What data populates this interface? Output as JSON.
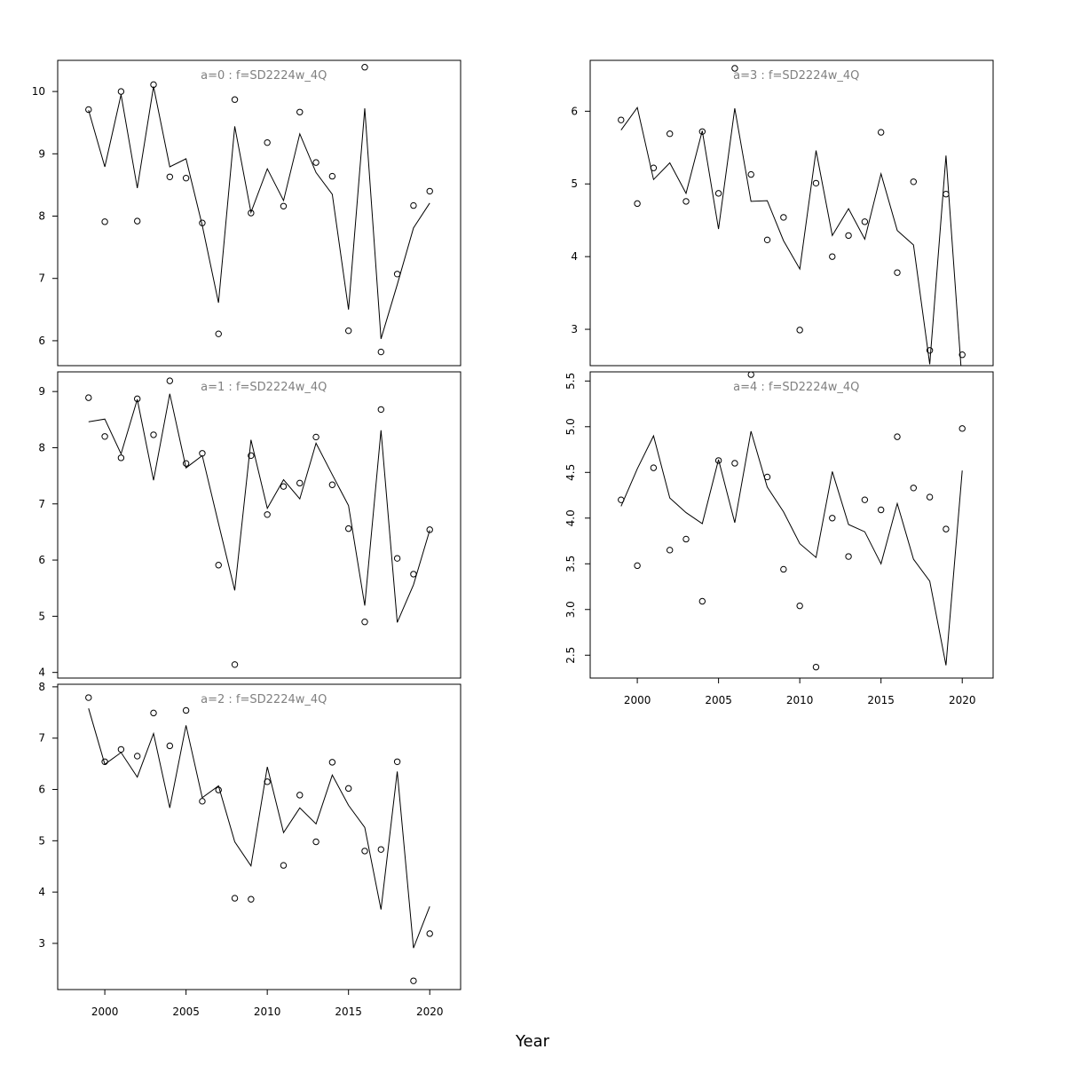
{
  "figure": {
    "xlabel": "Year"
  },
  "colors": {
    "title": "#808080",
    "line": "#000000",
    "points": "#000000",
    "frame": "#000000"
  },
  "chart_data": [
    {
      "type": "line",
      "title": "a=0  :  f=SD2224w_4Q",
      "xlim": [
        1997.1,
        2021.9
      ],
      "ylim": [
        5.6,
        10.5
      ],
      "yticks": [
        6,
        7,
        8,
        9,
        10
      ],
      "xticks": [],
      "x": [
        1999,
        2000,
        2001,
        2002,
        2003,
        2004,
        2005,
        2006,
        2007,
        2008,
        2009,
        2010,
        2011,
        2012,
        2013,
        2014,
        2015,
        2016,
        2017,
        2018,
        2019,
        2020
      ],
      "series": [
        {
          "kind": "points",
          "values": [
            9.71,
            7.91,
            10.0,
            7.92,
            10.11,
            8.63,
            8.61,
            7.89,
            6.11,
            9.87,
            8.05,
            9.18,
            8.16,
            9.67,
            8.86,
            8.64,
            6.16,
            10.39,
            5.82,
            7.07,
            8.17,
            8.4
          ]
        },
        {
          "kind": "line",
          "values": [
            9.7,
            8.79,
            9.95,
            8.45,
            10.08,
            8.79,
            8.92,
            7.85,
            6.61,
            9.44,
            8.06,
            8.76,
            8.25,
            9.32,
            8.7,
            8.35,
            6.5,
            9.73,
            6.03,
            6.9,
            7.81,
            8.21
          ]
        }
      ]
    },
    {
      "type": "line",
      "title": "a=3  :  f=SD2224w_4Q",
      "xlim": [
        1997.1,
        2021.9
      ],
      "ylim": [
        2.5,
        6.7
      ],
      "yticks": [
        3,
        4,
        5,
        6
      ],
      "xticks": [],
      "x": [
        1999,
        2000,
        2001,
        2002,
        2003,
        2004,
        2005,
        2006,
        2007,
        2008,
        2009,
        2010,
        2011,
        2012,
        2013,
        2014,
        2015,
        2016,
        2017,
        2018,
        2019,
        2020
      ],
      "series": [
        {
          "kind": "points",
          "values": [
            5.88,
            4.73,
            5.22,
            5.69,
            4.76,
            5.72,
            4.87,
            6.59,
            5.13,
            4.23,
            4.54,
            2.99,
            5.01,
            4.0,
            4.29,
            4.48,
            5.71,
            3.78,
            5.03,
            2.71,
            4.86,
            2.65
          ]
        },
        {
          "kind": "line",
          "values": [
            5.74,
            6.05,
            5.06,
            5.29,
            4.87,
            5.73,
            4.38,
            6.04,
            4.76,
            4.77,
            4.22,
            3.83,
            5.46,
            4.29,
            4.66,
            4.24,
            5.14,
            4.36,
            4.16,
            2.52,
            5.39,
            2.25
          ]
        }
      ]
    },
    {
      "type": "line",
      "title": "a=1  :  f=SD2224w_4Q",
      "xlim": [
        1997.1,
        2021.9
      ],
      "ylim": [
        3.9,
        9.35
      ],
      "yticks": [
        4,
        5,
        6,
        7,
        8,
        9
      ],
      "xticks": [],
      "x": [
        1999,
        2000,
        2001,
        2002,
        2003,
        2004,
        2005,
        2006,
        2007,
        2008,
        2009,
        2010,
        2011,
        2012,
        2013,
        2014,
        2015,
        2016,
        2017,
        2018,
        2019,
        2020
      ],
      "series": [
        {
          "kind": "points",
          "values": [
            8.89,
            8.2,
            7.82,
            8.87,
            8.23,
            9.19,
            7.72,
            7.9,
            5.91,
            4.14,
            7.86,
            6.81,
            7.31,
            7.37,
            8.19,
            7.34,
            6.56,
            4.9,
            8.68,
            6.03,
            5.75,
            6.54
          ]
        },
        {
          "kind": "line",
          "values": [
            8.46,
            8.51,
            7.89,
            8.86,
            7.42,
            8.96,
            7.64,
            7.86,
            6.65,
            5.46,
            8.14,
            6.92,
            7.43,
            7.09,
            8.08,
            7.52,
            6.97,
            5.19,
            8.31,
            4.89,
            5.56,
            6.53
          ]
        }
      ]
    },
    {
      "type": "line",
      "title": "a=4  :  f=SD2224w_4Q",
      "xlim": [
        1997.1,
        2021.9
      ],
      "ylim": [
        2.25,
        5.6
      ],
      "yticks": [
        2.5,
        3.0,
        3.5,
        4.0,
        4.5,
        5.0,
        5.5
      ],
      "xticks": [
        2000,
        2005,
        2010,
        2015,
        2020
      ],
      "x": [
        1999,
        2000,
        2001,
        2002,
        2003,
        2004,
        2005,
        2006,
        2007,
        2008,
        2009,
        2010,
        2011,
        2012,
        2013,
        2014,
        2015,
        2016,
        2017,
        2018,
        2019,
        2020
      ],
      "series": [
        {
          "kind": "points",
          "values": [
            4.2,
            3.48,
            4.55,
            3.65,
            3.77,
            3.09,
            4.63,
            4.6,
            5.57,
            4.45,
            3.44,
            3.04,
            2.37,
            4.0,
            3.58,
            4.2,
            4.09,
            4.89,
            4.33,
            4.23,
            3.88,
            4.98
          ]
        },
        {
          "kind": "line",
          "values": [
            4.13,
            4.54,
            4.9,
            4.22,
            4.06,
            3.94,
            4.64,
            3.95,
            4.95,
            4.34,
            4.07,
            3.72,
            3.57,
            4.51,
            3.93,
            3.85,
            3.5,
            4.16,
            3.55,
            3.31,
            2.39,
            4.52
          ]
        }
      ]
    },
    {
      "type": "line",
      "title": "a=2  :  f=SD2224w_4Q",
      "xlim": [
        1997.1,
        2021.9
      ],
      "ylim": [
        2.1,
        8.05
      ],
      "yticks": [
        3,
        4,
        5,
        6,
        7,
        8
      ],
      "xticks": [
        2000,
        2005,
        2010,
        2015,
        2020
      ],
      "x": [
        1999,
        2000,
        2001,
        2002,
        2003,
        2004,
        2005,
        2006,
        2007,
        2008,
        2009,
        2010,
        2011,
        2012,
        2013,
        2014,
        2015,
        2016,
        2017,
        2018,
        2019,
        2020
      ],
      "series": [
        {
          "kind": "points",
          "values": [
            7.79,
            6.54,
            6.78,
            6.65,
            7.49,
            6.85,
            7.54,
            5.77,
            5.99,
            3.88,
            3.86,
            6.15,
            4.52,
            5.89,
            4.98,
            6.53,
            6.02,
            4.8,
            4.83,
            6.54,
            2.27,
            3.19
          ]
        },
        {
          "kind": "line",
          "values": [
            7.58,
            6.49,
            6.72,
            6.24,
            7.09,
            5.64,
            7.25,
            5.84,
            6.07,
            4.98,
            4.51,
            6.44,
            5.16,
            5.64,
            5.33,
            6.28,
            5.69,
            5.26,
            3.66,
            6.35,
            2.91,
            3.72
          ]
        }
      ]
    }
  ]
}
